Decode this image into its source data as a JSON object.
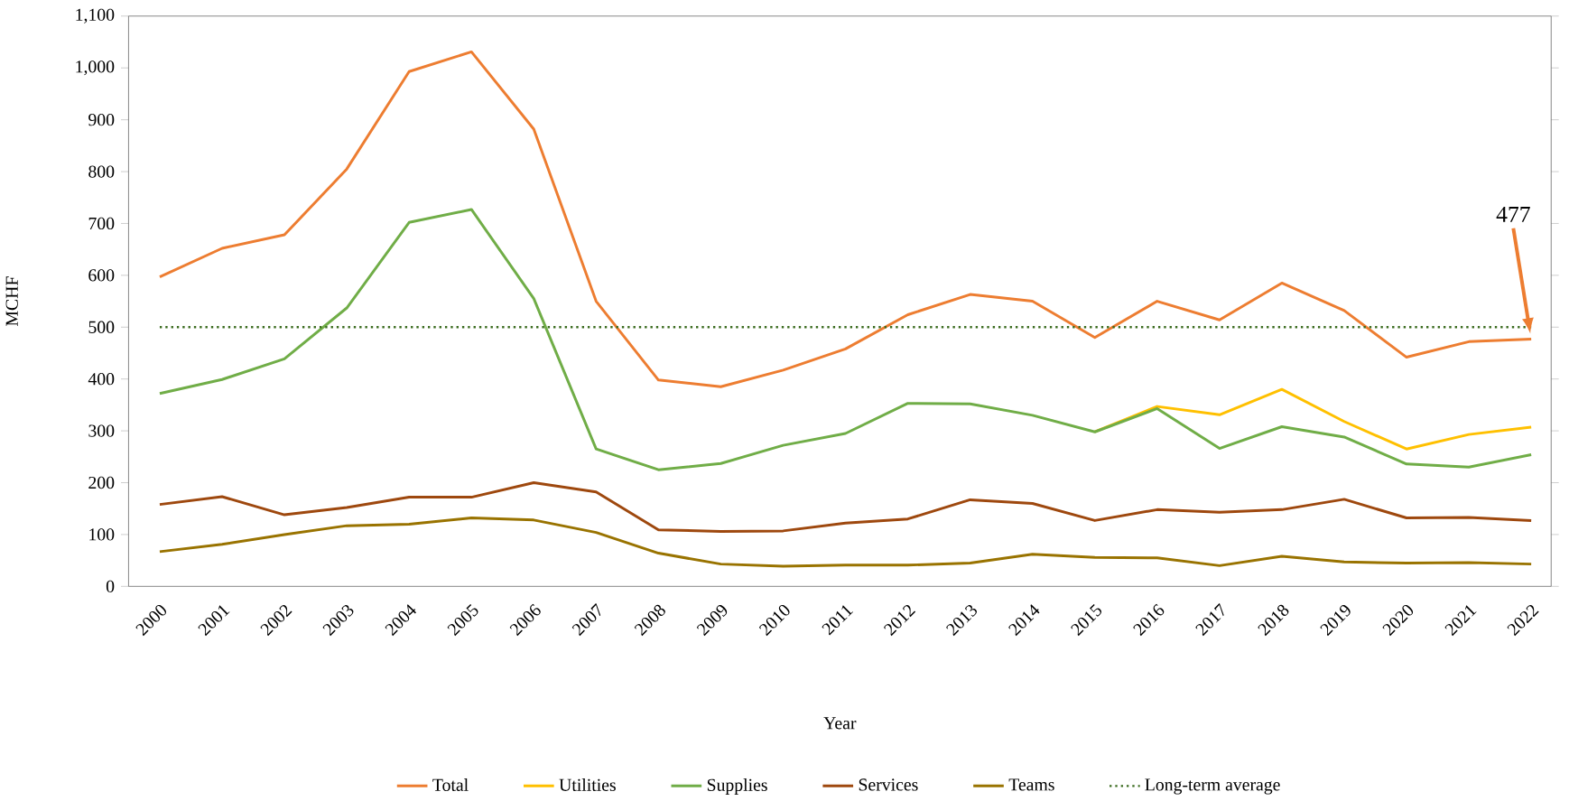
{
  "chart_data": {
    "type": "line",
    "xlabel": "Year",
    "ylabel": "MCHF",
    "categories": [
      "2000",
      "2001",
      "2002",
      "2003",
      "2004",
      "2005",
      "2006",
      "2007",
      "2008",
      "2009",
      "2010",
      "2011",
      "2012",
      "2013",
      "2014",
      "2015",
      "2016",
      "2017",
      "2018",
      "2019",
      "2020",
      "2021",
      "2022"
    ],
    "series": [
      {
        "name": "Total",
        "color": "#ed7d31",
        "values": [
          597,
          652,
          678,
          805,
          993,
          1031,
          882,
          550,
          398,
          385,
          417,
          458,
          524,
          563,
          550,
          480,
          550,
          514,
          585,
          532,
          442,
          472,
          477
        ]
      },
      {
        "name": "Utilities",
        "color": "#ffc000",
        "values": [
          null,
          null,
          null,
          null,
          null,
          null,
          null,
          null,
          null,
          null,
          null,
          null,
          null,
          null,
          null,
          298,
          347,
          331,
          380,
          318,
          265,
          293,
          307
        ]
      },
      {
        "name": "Supplies",
        "color": "#70ad47",
        "values": [
          372,
          399,
          439,
          537,
          702,
          727,
          555,
          265,
          225,
          237,
          272,
          295,
          353,
          352,
          330,
          298,
          343,
          266,
          308,
          288,
          236,
          230,
          254
        ]
      },
      {
        "name": "Services",
        "color": "#9e480e",
        "values": [
          158,
          173,
          138,
          152,
          172,
          172,
          200,
          182,
          109,
          106,
          107,
          122,
          130,
          167,
          160,
          127,
          148,
          143,
          148,
          168,
          132,
          133,
          127
        ]
      },
      {
        "name": "Teams",
        "color": "#997300",
        "values": [
          67,
          81,
          100,
          117,
          120,
          132,
          128,
          104,
          64,
          43,
          39,
          41,
          41,
          45,
          62,
          56,
          55,
          40,
          58,
          47,
          45,
          46,
          43
        ]
      }
    ],
    "ylim": [
      0,
      1100
    ],
    "yticks": [
      0,
      100,
      200,
      300,
      400,
      500,
      600,
      700,
      800,
      900,
      {
        "value": 1000,
        "label": "1,000"
      },
      {
        "value": 1100,
        "label": "1,100"
      }
    ],
    "annotations": [
      "477"
    ],
    "ref_lines": [
      {
        "axis": "y",
        "value": 500,
        "label": "Long-term average",
        "color": "#3a6b1e",
        "line_style": "dotted"
      }
    ],
    "grid": false,
    "legend": "bottom",
    "marker": "none",
    "line_style": "solid"
  }
}
